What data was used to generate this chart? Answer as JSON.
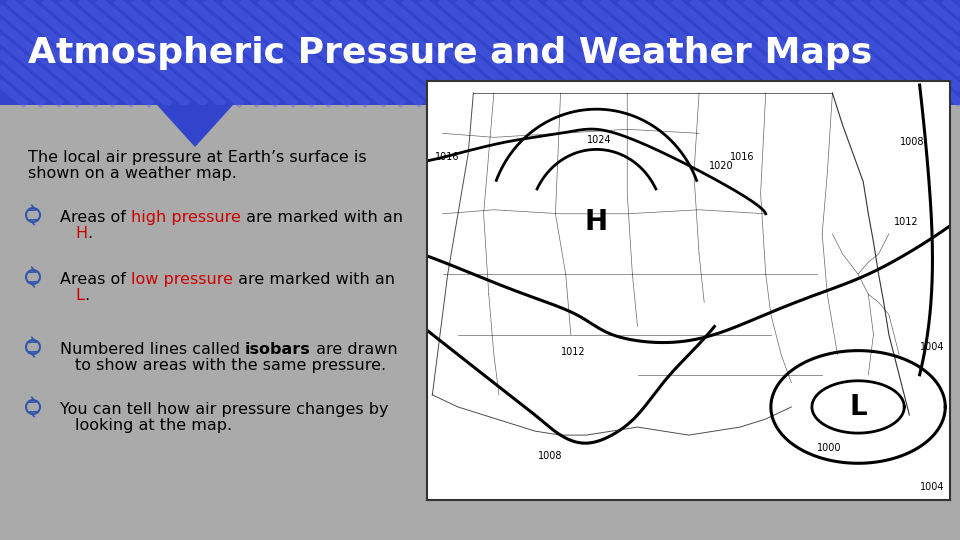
{
  "title": "Atmospheric Pressure and Weather Maps",
  "title_color": "#FFFFFF",
  "title_bg_color": "#3344CC",
  "title_stripe_color": "#4455DD",
  "body_bg_color": "#AAAAAA",
  "intro_text_line1": "The local air pressure at Earth’s surface is",
  "intro_text_line2": "shown on a weather map.",
  "bullets": [
    {
      "line1_parts": [
        {
          "text": "Areas of ",
          "color": "#000000",
          "bold": false
        },
        {
          "text": "high pressure",
          "color": "#CC0000",
          "bold": false
        },
        {
          "text": " are marked with an",
          "color": "#000000",
          "bold": false
        }
      ],
      "line2_parts": [
        {
          "text": "H",
          "color": "#CC0000",
          "bold": false
        },
        {
          "text": ".",
          "color": "#000000",
          "bold": false
        }
      ]
    },
    {
      "line1_parts": [
        {
          "text": "Areas of ",
          "color": "#000000",
          "bold": false
        },
        {
          "text": "low pressure",
          "color": "#CC0000",
          "bold": false
        },
        {
          "text": " are marked with an",
          "color": "#000000",
          "bold": false
        }
      ],
      "line2_parts": [
        {
          "text": "L",
          "color": "#CC0000",
          "bold": false
        },
        {
          "text": ".",
          "color": "#000000",
          "bold": false
        }
      ]
    },
    {
      "line1_parts": [
        {
          "text": "Numbered lines called ",
          "color": "#000000",
          "bold": false
        },
        {
          "text": "isobars",
          "color": "#000000",
          "bold": true
        },
        {
          "text": " are drawn",
          "color": "#000000",
          "bold": false
        }
      ],
      "line2_parts": [
        {
          "text": "to show areas with the same pressure.",
          "color": "#000000",
          "bold": false
        }
      ]
    },
    {
      "line1_parts": [
        {
          "text": "You can tell how air pressure changes by",
          "color": "#000000",
          "bold": false
        }
      ],
      "line2_parts": [
        {
          "text": "looking at the map.",
          "color": "#000000",
          "bold": false
        }
      ]
    }
  ],
  "font_size_title": 26,
  "font_size_intro": 11.5,
  "font_size_bullet": 11.5,
  "bullet_icon_color": "#3355AA"
}
